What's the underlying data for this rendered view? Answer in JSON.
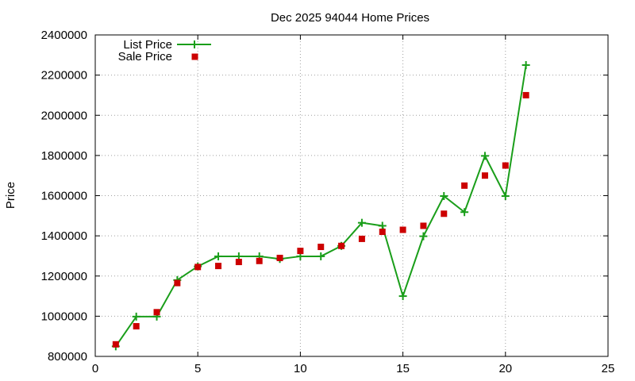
{
  "chart_data": {
    "type": "line",
    "title": "Dec 2025 94044 Home Prices",
    "xlabel": "",
    "ylabel": "Price",
    "xlim": [
      0,
      25
    ],
    "ylim": [
      800000,
      2400000
    ],
    "x_ticks": [
      0,
      5,
      10,
      15,
      20,
      25
    ],
    "y_ticks": [
      800000,
      1000000,
      1200000,
      1400000,
      1600000,
      1800000,
      2000000,
      2200000,
      2400000
    ],
    "x_tick_labels": [
      "0",
      "5",
      "10",
      "15",
      "20",
      "25"
    ],
    "y_tick_labels": [
      "800000",
      "1000000",
      "1200000",
      "1400000",
      "1600000",
      "1800000",
      "2000000",
      "2200000",
      "2400000"
    ],
    "grid": true,
    "legend_placement": "top-left",
    "series": [
      {
        "name": "List Price",
        "style": "line+cross",
        "color": "#1a9e1a",
        "x": [
          1,
          2,
          3,
          4,
          5,
          6,
          7,
          8,
          9,
          10,
          11,
          12,
          13,
          14,
          15,
          16,
          17,
          18,
          19,
          20,
          21
        ],
        "y": [
          850000,
          998000,
          998000,
          1180000,
          1248000,
          1298000,
          1298000,
          1298000,
          1285000,
          1298000,
          1298000,
          1350000,
          1465000,
          1450000,
          1100000,
          1398000,
          1598000,
          1518000,
          1798000,
          1598000,
          2250000
        ]
      },
      {
        "name": "Sale Price",
        "style": "square",
        "color": "#cc0000",
        "x": [
          1,
          2,
          3,
          4,
          5,
          6,
          7,
          8,
          9,
          10,
          11,
          12,
          13,
          14,
          15,
          16,
          17,
          18,
          19,
          20,
          21
        ],
        "y": [
          860000,
          950000,
          1020000,
          1165000,
          1245000,
          1250000,
          1270000,
          1275000,
          1290000,
          1325000,
          1345000,
          1350000,
          1385000,
          1420000,
          1430000,
          1450000,
          1510000,
          1650000,
          1700000,
          1750000,
          2100000
        ]
      }
    ]
  }
}
